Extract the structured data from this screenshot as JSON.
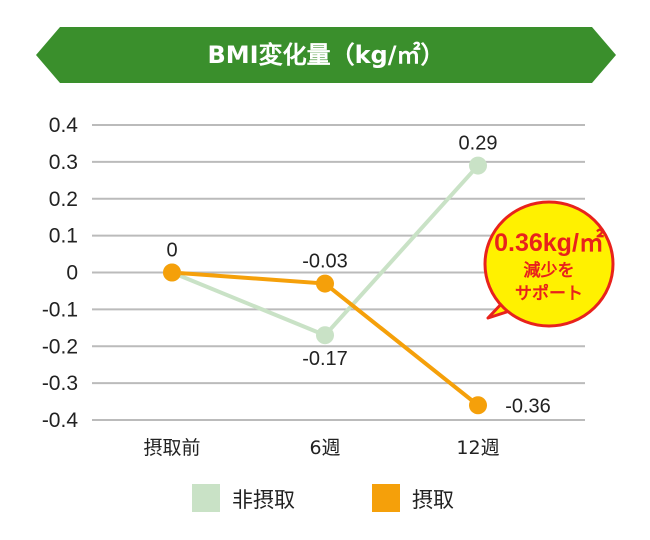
{
  "chart_data": {
    "type": "line",
    "title": "BMI変化量（kg/㎡）",
    "categories": [
      "摂取前",
      "6週",
      "12週"
    ],
    "ylim": [
      -0.4,
      0.4
    ],
    "yticks": [
      "0.4",
      "0.3",
      "0.2",
      "0.1",
      "0",
      "-0.1",
      "-0.2",
      "-0.3",
      "-0.4"
    ],
    "grid": true,
    "legend_position": "bottom",
    "series": [
      {
        "name": "非摂取",
        "values": [
          0,
          -0.17,
          0.29
        ],
        "labels": [
          "",
          "-0.17",
          "0.29"
        ],
        "color": "#c9e2c6"
      },
      {
        "name": "摂取",
        "values": [
          0,
          -0.03,
          -0.36
        ],
        "labels": [
          "0",
          "-0.03",
          "-0.36"
        ],
        "color": "#f5a00a"
      }
    ],
    "annotation": {
      "main": "0.36kg/㎡",
      "line1": "減少を",
      "line2": "サポート"
    }
  },
  "colors": {
    "title_banner": "#3a8f2c",
    "badge_fill": "#fff100",
    "badge_border": "#e8221c",
    "grid": "#bbbbbb"
  }
}
